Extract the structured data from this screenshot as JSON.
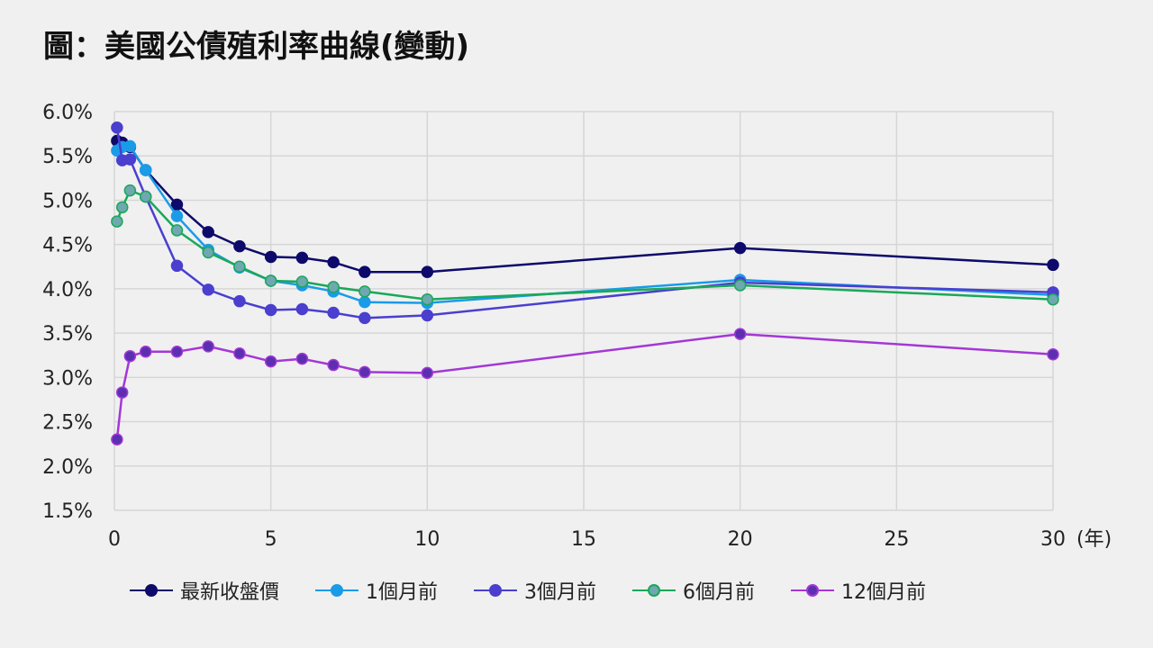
{
  "title": "圖：美國公債殖利率曲線(變動)",
  "x_unit_label": "(年)",
  "chart_data": {
    "type": "line",
    "title": "圖：美國公債殖利率曲線(變動)",
    "xlabel": "(年)",
    "ylabel": "",
    "xlim": [
      0,
      30
    ],
    "ylim": [
      1.5,
      6.0
    ],
    "x_ticks": [
      0,
      5,
      10,
      15,
      20,
      25,
      30
    ],
    "x_tick_labels": [
      "0",
      "5",
      "10",
      "15",
      "20",
      "25",
      "30"
    ],
    "y_ticks": [
      1.5,
      2.0,
      2.5,
      3.0,
      3.5,
      4.0,
      4.5,
      5.0,
      5.5,
      6.0
    ],
    "y_tick_labels": [
      "1.5%",
      "2.0%",
      "2.5%",
      "3.0%",
      "3.5%",
      "4.0%",
      "4.5%",
      "5.0%",
      "5.5%",
      "6.0%"
    ],
    "grid": true,
    "legend_position": "bottom",
    "x": [
      0.083,
      0.25,
      0.5,
      1,
      2,
      3,
      4,
      5,
      6,
      7,
      8,
      10,
      20,
      30
    ],
    "series": [
      {
        "name": "最新收盤價",
        "color": "#0d0a6b",
        "fill": "#0d0a6b",
        "values": [
          5.67,
          5.65,
          5.6,
          5.34,
          4.95,
          4.64,
          4.48,
          4.36,
          4.35,
          4.3,
          4.19,
          4.19,
          4.46,
          4.27
        ]
      },
      {
        "name": "1個月前",
        "color": "#1a9be8",
        "fill": "#1a9be8",
        "values": [
          5.56,
          5.6,
          5.61,
          5.34,
          4.82,
          4.44,
          4.24,
          4.09,
          4.04,
          3.97,
          3.85,
          3.84,
          4.1,
          3.93
        ]
      },
      {
        "name": "3個月前",
        "color": "#4a3fcf",
        "fill": "#4a3fcf",
        "values": [
          5.82,
          5.45,
          5.46,
          5.04,
          4.26,
          3.99,
          3.86,
          3.76,
          3.77,
          3.73,
          3.67,
          3.7,
          4.07,
          3.96
        ]
      },
      {
        "name": "6個月前",
        "color": "#1aa85a",
        "fill": "#6fa8b0",
        "values": [
          4.76,
          4.92,
          5.11,
          5.04,
          4.66,
          4.41,
          4.25,
          4.09,
          4.08,
          4.02,
          3.97,
          3.88,
          4.04,
          3.88
        ]
      },
      {
        "name": "12個月前",
        "color": "#a437d6",
        "fill": "#5a2fb0",
        "values": [
          2.3,
          2.83,
          3.24,
          3.29,
          3.29,
          3.35,
          3.27,
          3.18,
          3.21,
          3.14,
          3.06,
          3.05,
          3.49,
          3.26
        ]
      }
    ]
  }
}
